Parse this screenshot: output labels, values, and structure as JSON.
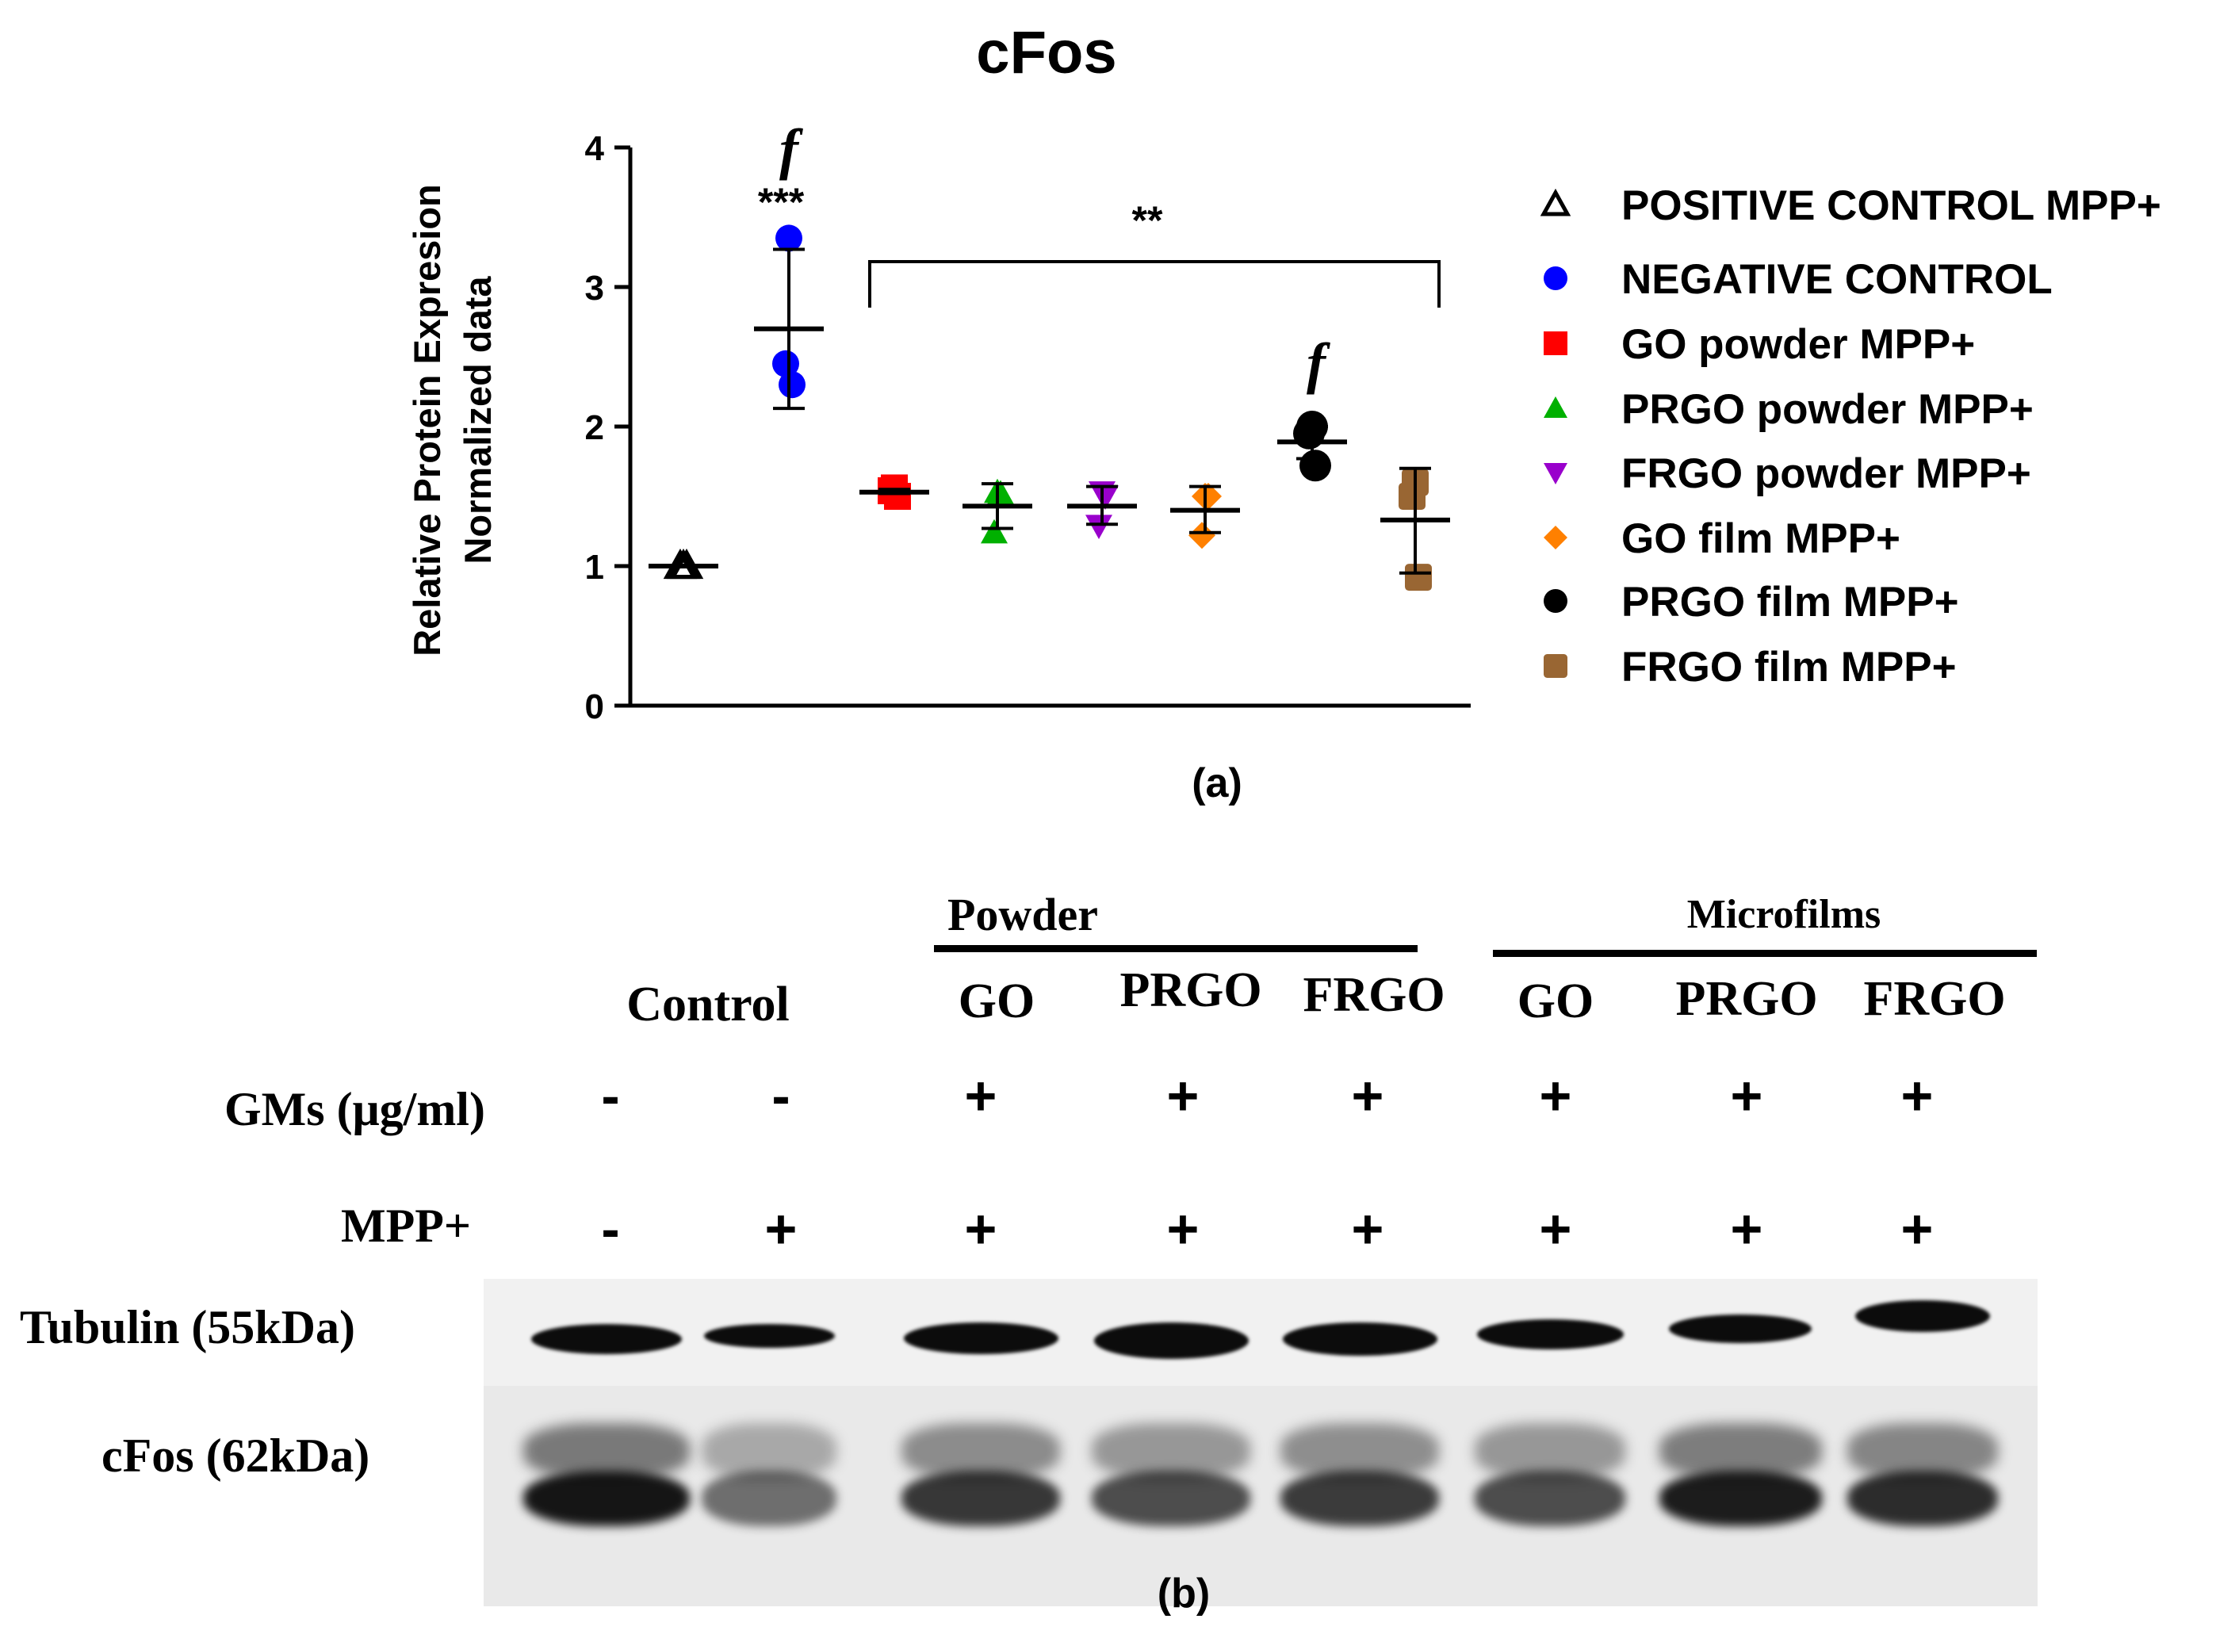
{
  "chart_data": {
    "type": "scatter",
    "title": "cFos",
    "ylabel_line1": "Relative Protein Expresion",
    "ylabel_line2": "Normalized data",
    "xlabel": "",
    "ylim": [
      0,
      4
    ],
    "yticks": [
      0,
      1,
      2,
      3,
      4
    ],
    "grid": false,
    "legend_position": "right",
    "series": [
      {
        "name": "POSITIVE CONTROL  MPP+",
        "color": "#000000",
        "marker": "triangle-open",
        "points": [
          1.0,
          1.0,
          1.0
        ],
        "mean": 1.0,
        "sd_low": 1.0,
        "sd_high": 1.0
      },
      {
        "name": "NEGATIVE CONTROL",
        "color": "#0000ff",
        "marker": "circle",
        "points": [
          3.35,
          2.45,
          2.3
        ],
        "mean": 2.7,
        "sd_low": 2.13,
        "sd_high": 3.27
      },
      {
        "name": "GO powder MPP+",
        "color": "#ff0000",
        "marker": "square",
        "points": [
          1.56,
          1.54,
          1.5
        ],
        "mean": 1.53,
        "sd_low": 1.52,
        "sd_high": 1.55
      },
      {
        "name": "PRGO powder MPP+",
        "color": "#00b000",
        "marker": "triangle-up",
        "points": [
          1.53,
          1.24,
          1.52
        ],
        "mean": 1.43,
        "sd_low": 1.27,
        "sd_high": 1.59
      },
      {
        "name": "FRGO powder MPP+",
        "color": "#9900cc",
        "marker": "triangle-down",
        "points": [
          1.53,
          1.29,
          1.5
        ],
        "mean": 1.43,
        "sd_low": 1.3,
        "sd_high": 1.57
      },
      {
        "name": "GO film MPP+",
        "color": "#ff8000",
        "marker": "diamond",
        "points": [
          1.5,
          1.22,
          1.5
        ],
        "mean": 1.4,
        "sd_low": 1.24,
        "sd_high": 1.57
      },
      {
        "name": "PRGO film MPP+",
        "color": "#000000",
        "marker": "circle",
        "points": [
          2.0,
          1.95,
          1.72
        ],
        "mean": 1.89,
        "sd_low": 1.77,
        "sd_high": 2.0
      },
      {
        "name": "FRGO film MPP+",
        "color": "#996633",
        "marker": "square-round",
        "points": [
          1.6,
          1.5,
          0.92
        ],
        "mean": 1.33,
        "sd_low": 0.95,
        "sd_high": 1.7
      }
    ],
    "annotations": {
      "negative_stars": "***",
      "negative_f": "f",
      "bracket_stars": "**",
      "prgo_film_f": "f"
    }
  },
  "panel_a_label": "(a)",
  "panel_b_label": "(b)",
  "blot": {
    "group_powder": "Powder",
    "group_microfilms": "Microfilms",
    "control_label": "Control",
    "lane_labels": [
      "GO",
      "PRGO",
      "FRGO",
      "GO",
      "PRGO",
      "FRGO"
    ],
    "gms_label": "GMs (μg/ml)",
    "mpp_label": "MPP+",
    "gms_row": [
      "-",
      "-",
      "+",
      "+",
      "+",
      "+",
      "+",
      "+"
    ],
    "mpp_row": [
      "-",
      "+",
      "+",
      "+",
      "+",
      "+",
      "+",
      "+"
    ],
    "tubulin_label": "Tubulin (55kDa)",
    "cfos_label": "cFos (62kDa)"
  }
}
